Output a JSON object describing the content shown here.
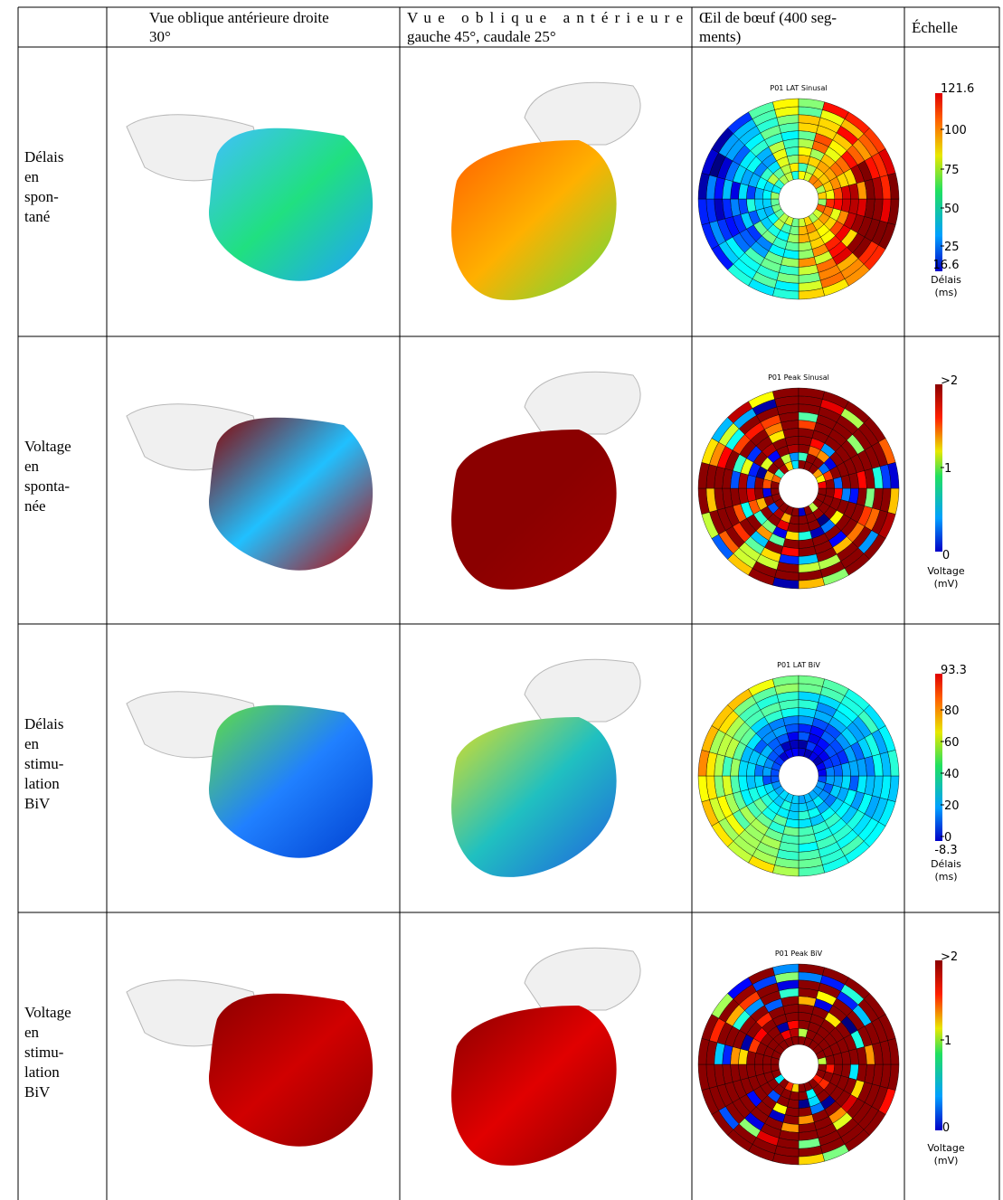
{
  "header": {
    "cells": [
      {
        "lines": [
          "Vue oblique antérieure droite",
          "30°"
        ]
      },
      {
        "lines": [
          "Vue oblique antérieure",
          "gauche 45°, caudale 25°"
        ]
      },
      {
        "lines": [
          "Œil de bœuf (400 seg-",
          "ments)"
        ]
      },
      {
        "lines": [
          "Échelle"
        ]
      }
    ]
  },
  "rows": [
    {
      "label": [
        "Délais",
        "en",
        "spon-",
        "tané"
      ],
      "bullseye_title": "P01 LAT Sinusal",
      "scale": [
        "121.6",
        "100",
        "75",
        "50",
        "25",
        "16.6",
        "Délais",
        "(ms)"
      ]
    },
    {
      "label": [
        "Voltage",
        "en",
        "sponta-",
        "née"
      ],
      "bullseye_title": "P01 Peak Sinusal",
      "scale": [
        ">2",
        "1",
        "0",
        "Voltage",
        "(mV)"
      ]
    },
    {
      "label": [
        "Délais",
        "en",
        "stimu-",
        "lation",
        "BiV"
      ],
      "bullseye_title": "P01 LAT BiV",
      "scale": [
        "93.3",
        "80",
        "60",
        "40",
        "20",
        "0",
        "-8.3",
        "Délais",
        "(ms)"
      ]
    },
    {
      "label": [
        "Voltage",
        "en",
        "stimu-",
        "lation",
        "BiV"
      ],
      "bullseye_title": "P01 Peak BiV",
      "scale": [
        ">2",
        "1",
        "0",
        "Voltage",
        "(mV)"
      ]
    }
  ]
}
